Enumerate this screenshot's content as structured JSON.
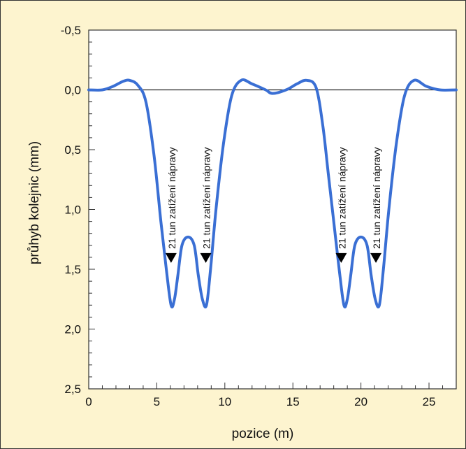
{
  "chart_data": {
    "type": "line",
    "xlabel": "pozice (m)",
    "ylabel": "průhyb kolejnic (mm)",
    "xlim": [
      0,
      27
    ],
    "ylim": [
      -0.5,
      2.5
    ],
    "y_inverted": true,
    "x_ticks": [
      0,
      5,
      10,
      15,
      20,
      25
    ],
    "x_tick_labels": [
      "0",
      "5",
      "10",
      "15",
      "20",
      "25"
    ],
    "y_ticks": [
      -0.5,
      0,
      0.5,
      1,
      1.5,
      2,
      2.5
    ],
    "y_tick_labels": [
      "-0,5",
      "0,0",
      "0,5",
      "1,0",
      "1,5",
      "2,0",
      "2,5"
    ],
    "grid": false,
    "baseline": 0,
    "series": [
      {
        "color": "#3a6fd4",
        "x": [
          0,
          1,
          1.8,
          2.5,
          3,
          3.6,
          4.2,
          4.8,
          5.3,
          5.7,
          6.05,
          6.3,
          6.55,
          6.85,
          7.3,
          7.75,
          8.05,
          8.35,
          8.65,
          8.95,
          9.35,
          9.9,
          10.5,
          11.2,
          12,
          13,
          13.5,
          14.5,
          15.3,
          16,
          16.7,
          17.2,
          17.6,
          18,
          18.4,
          18.75,
          19,
          19.25,
          19.55,
          20,
          20.45,
          20.75,
          21.05,
          21.35,
          21.65,
          22.05,
          22.6,
          23.2,
          23.9,
          24.8,
          25.8,
          27
        ],
        "y": [
          0,
          0,
          -0.03,
          -0.07,
          -0.08,
          -0.04,
          0.1,
          0.55,
          1.1,
          1.5,
          1.8,
          1.75,
          1.55,
          1.3,
          1.23,
          1.3,
          1.55,
          1.75,
          1.8,
          1.5,
          1.0,
          0.45,
          0.05,
          -0.08,
          -0.05,
          0,
          0.03,
          0,
          -0.05,
          -0.08,
          -0.02,
          0.3,
          0.7,
          1.1,
          1.5,
          1.8,
          1.75,
          1.55,
          1.3,
          1.23,
          1.3,
          1.55,
          1.75,
          1.8,
          1.5,
          1.0,
          0.45,
          0.05,
          -0.08,
          -0.03,
          0,
          0
        ]
      }
    ],
    "annotations": [
      {
        "x": 6.05,
        "y": 1.4,
        "text": "21 tun zatížení nápravy",
        "marker": "triangle-down"
      },
      {
        "x": 8.6,
        "y": 1.4,
        "text": "21 tun zatížení nápravy",
        "marker": "triangle-down"
      },
      {
        "x": 18.55,
        "y": 1.4,
        "text": "21 tun zatížení nápravy",
        "marker": "triangle-down"
      },
      {
        "x": 21.1,
        "y": 1.4,
        "text": "21 tun zatížení nápravy",
        "marker": "triangle-down"
      }
    ]
  }
}
